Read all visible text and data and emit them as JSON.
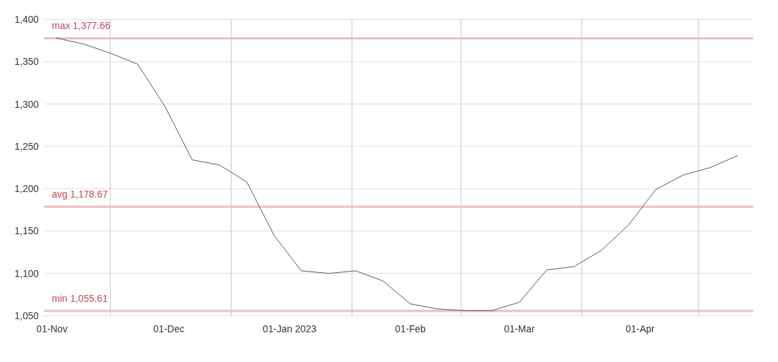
{
  "chart_data": {
    "type": "line",
    "x": [
      "2022-11-02",
      "2022-11-09",
      "2022-11-16",
      "2022-11-23",
      "2022-11-30",
      "2022-12-07",
      "2022-12-14",
      "2022-12-21",
      "2022-12-28",
      "2023-01-04",
      "2023-01-11",
      "2023-01-18",
      "2023-01-25",
      "2023-02-01",
      "2023-02-08",
      "2023-02-15",
      "2023-02-22",
      "2023-03-01",
      "2023-03-08",
      "2023-03-15",
      "2023-03-22",
      "2023-03-29",
      "2023-04-05",
      "2023-04-12",
      "2023-04-19",
      "2023-04-26"
    ],
    "values": [
      1378,
      1371,
      1360,
      1347,
      1297,
      1234,
      1228,
      1208,
      1145,
      1103,
      1100,
      1103,
      1091,
      1064,
      1058,
      1056,
      1056,
      1066,
      1104,
      1108,
      1127,
      1157,
      1199,
      1216,
      1225,
      1239
    ],
    "color": "#555555",
    "xlim": [
      "2022-10-30",
      "2023-04-30"
    ],
    "xticks": [
      {
        "value": "2022-11-01",
        "label": "01-Nov"
      },
      {
        "value": "2022-11-16",
        "label": null
      },
      {
        "value": "2022-12-01",
        "label": "01-Dec"
      },
      {
        "value": "2022-12-17",
        "label": null
      },
      {
        "value": "2023-01-01",
        "label": "01-Jan 2023"
      },
      {
        "value": "2023-01-17",
        "label": null
      },
      {
        "value": "2023-02-01",
        "label": "01-Feb"
      },
      {
        "value": "2023-02-14",
        "label": null
      },
      {
        "value": "2023-03-01",
        "label": "01-Mar"
      },
      {
        "value": "2023-03-17",
        "label": null
      },
      {
        "value": "2023-04-01",
        "label": "01-Apr"
      },
      {
        "value": "2023-04-16",
        "label": null
      }
    ],
    "ylim": [
      1050,
      1400
    ],
    "yticks": [
      {
        "value": 1050,
        "label": "1,050"
      },
      {
        "value": 1100,
        "label": "1,100"
      },
      {
        "value": 1150,
        "label": "1,150"
      },
      {
        "value": 1200,
        "label": "1,200"
      },
      {
        "value": 1250,
        "label": "1,250"
      },
      {
        "value": 1300,
        "label": "1,300"
      },
      {
        "value": 1350,
        "label": "1,350"
      },
      {
        "value": 1400,
        "label": "1,400"
      }
    ],
    "grid": true,
    "ref_lines": [
      {
        "axis": "y",
        "value": 1377.66,
        "label": "max 1,377.66",
        "color": "#f0bcbc"
      },
      {
        "axis": "y",
        "value": 1178.67,
        "label": "avg 1,178.67",
        "color": "#f0bcbc"
      },
      {
        "axis": "y",
        "value": 1055.61,
        "label": "min 1,055.61",
        "color": "#f0bcbc"
      }
    ]
  }
}
